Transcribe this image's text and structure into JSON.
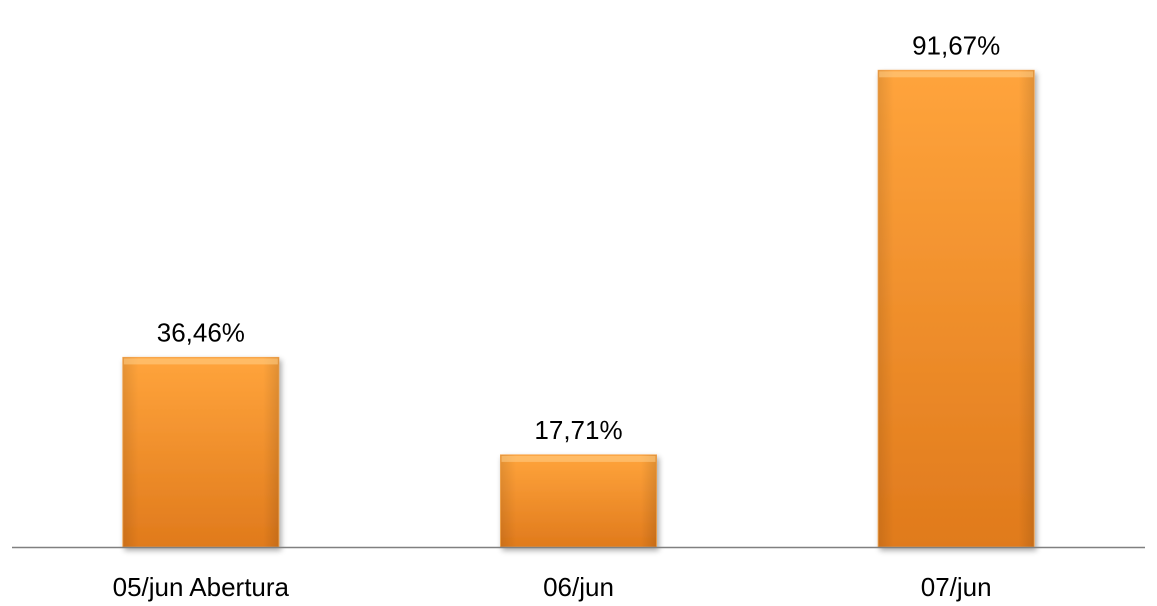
{
  "chart_data": {
    "type": "bar",
    "categories": [
      "05/jun Abertura",
      "06/jun",
      "07/jun"
    ],
    "values": [
      36.46,
      17.71,
      91.67
    ],
    "data_labels": [
      "36,46%",
      "17,71%",
      "91,67%"
    ],
    "title": "",
    "xlabel": "",
    "ylabel": "",
    "ylim": [
      0,
      100
    ],
    "grid": false,
    "legend": "none",
    "y_axis_visible": false,
    "colors": {
      "bar_light": "#FFA43C",
      "bar_dark": "#E07A1C",
      "bar_edge": "#F7A64E",
      "axis": "#808080",
      "text": "#000000"
    }
  }
}
